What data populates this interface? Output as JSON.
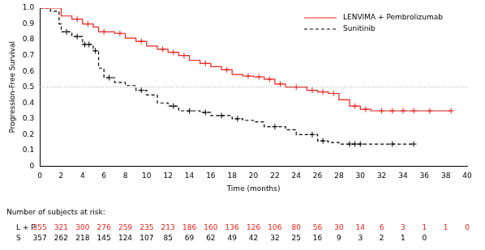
{
  "chart_data": {
    "type": "line",
    "x_label": "Time (months)",
    "y_label": "Progression-Free Survival",
    "xlim": [
      0,
      40
    ],
    "xticks": [
      0,
      2,
      4,
      6,
      8,
      10,
      12,
      14,
      16,
      18,
      20,
      22,
      24,
      26,
      28,
      30,
      32,
      34,
      36,
      38,
      40
    ],
    "ylim": [
      0,
      1
    ],
    "yticks": [
      0,
      0.1,
      0.2,
      0.3,
      0.4,
      0.5,
      0.6,
      0.7,
      0.8,
      0.9,
      {
        "value": 1,
        "label": "1.0"
      }
    ],
    "grid": false,
    "legend": "upper right",
    "reference_line": 0.5,
    "series": [
      {
        "name": "LENVIMA + Pembrolizumab",
        "color": "#e8231d",
        "line_style": "solid",
        "marker": "plus",
        "x": [
          0,
          2,
          3,
          4,
          5,
          5.5,
          7,
          8,
          9,
          10,
          11,
          12,
          13,
          14,
          15,
          16,
          17,
          18,
          19,
          20,
          21,
          22,
          23,
          25,
          26,
          27,
          28,
          29,
          30,
          31,
          38.5
        ],
        "values": [
          1,
          0.95,
          0.93,
          0.9,
          0.88,
          0.85,
          0.84,
          0.81,
          0.79,
          0.76,
          0.74,
          0.72,
          0.7,
          0.67,
          0.65,
          0.63,
          0.61,
          0.58,
          0.57,
          0.565,
          0.55,
          0.52,
          0.5,
          0.48,
          0.47,
          0.46,
          0.42,
          0.38,
          0.36,
          0.35,
          0.35
        ],
        "censored": {
          "x": [
            3.5,
            4.5,
            6,
            7.5,
            9.5,
            11.5,
            12.5,
            13.5,
            15.5,
            17.5,
            19.5,
            20.5,
            21.5,
            22.5,
            24,
            25.5,
            26.5,
            27.5,
            29.5,
            30.5,
            32,
            33,
            34,
            35,
            36.5,
            38.5
          ],
          "values": [
            0.93,
            0.9,
            0.85,
            0.84,
            0.79,
            0.74,
            0.72,
            0.7,
            0.65,
            0.61,
            0.57,
            0.565,
            0.55,
            0.52,
            0.5,
            0.48,
            0.47,
            0.46,
            0.38,
            0.36,
            0.35,
            0.35,
            0.35,
            0.35,
            0.35,
            0.35
          ]
        }
      },
      {
        "name": "Sunitinib",
        "color": "#000000",
        "line_style": "dashed",
        "marker": "plus",
        "x": [
          0,
          1,
          1.8,
          2,
          3,
          4,
          5,
          5.5,
          6,
          7,
          8,
          9,
          10,
          11,
          12,
          13,
          15,
          16,
          18,
          19,
          20,
          21,
          23,
          24,
          26,
          27,
          28,
          35
        ],
        "values": [
          1,
          0.98,
          0.9,
          0.85,
          0.82,
          0.77,
          0.73,
          0.62,
          0.56,
          0.53,
          0.51,
          0.48,
          0.45,
          0.4,
          0.38,
          0.35,
          0.34,
          0.32,
          0.3,
          0.29,
          0.28,
          0.25,
          0.23,
          0.2,
          0.16,
          0.15,
          0.14,
          0.14
        ],
        "censored": {
          "x": [
            2.5,
            3.5,
            4.2,
            4.6,
            5.2,
            6.5,
            9.5,
            12.5,
            14,
            15.5,
            17,
            18.5,
            22,
            25.5,
            26.5,
            29,
            29.5,
            30,
            33,
            35
          ],
          "values": [
            0.85,
            0.82,
            0.77,
            0.77,
            0.73,
            0.56,
            0.48,
            0.38,
            0.35,
            0.34,
            0.32,
            0.3,
            0.25,
            0.2,
            0.16,
            0.14,
            0.14,
            0.14,
            0.14,
            0.14
          ]
        }
      }
    ],
    "risk_table": {
      "title": "Number of subjects at risk:",
      "x": [
        0,
        2,
        4,
        6,
        8,
        10,
        12,
        14,
        16,
        18,
        20,
        22,
        24,
        26,
        28,
        30,
        32,
        34,
        36,
        38,
        40
      ],
      "rows": [
        {
          "label": "L + P",
          "color": "#e8231d",
          "values": [
            355,
            321,
            300,
            276,
            259,
            235,
            213,
            186,
            160,
            136,
            126,
            106,
            80,
            56,
            30,
            14,
            6,
            3,
            1,
            1,
            0
          ]
        },
        {
          "label": "S",
          "color": "#000000",
          "values": [
            357,
            262,
            218,
            145,
            124,
            107,
            85,
            69,
            62,
            49,
            42,
            32,
            25,
            16,
            9,
            3,
            2,
            1,
            0,
            null,
            null
          ]
        }
      ]
    }
  }
}
